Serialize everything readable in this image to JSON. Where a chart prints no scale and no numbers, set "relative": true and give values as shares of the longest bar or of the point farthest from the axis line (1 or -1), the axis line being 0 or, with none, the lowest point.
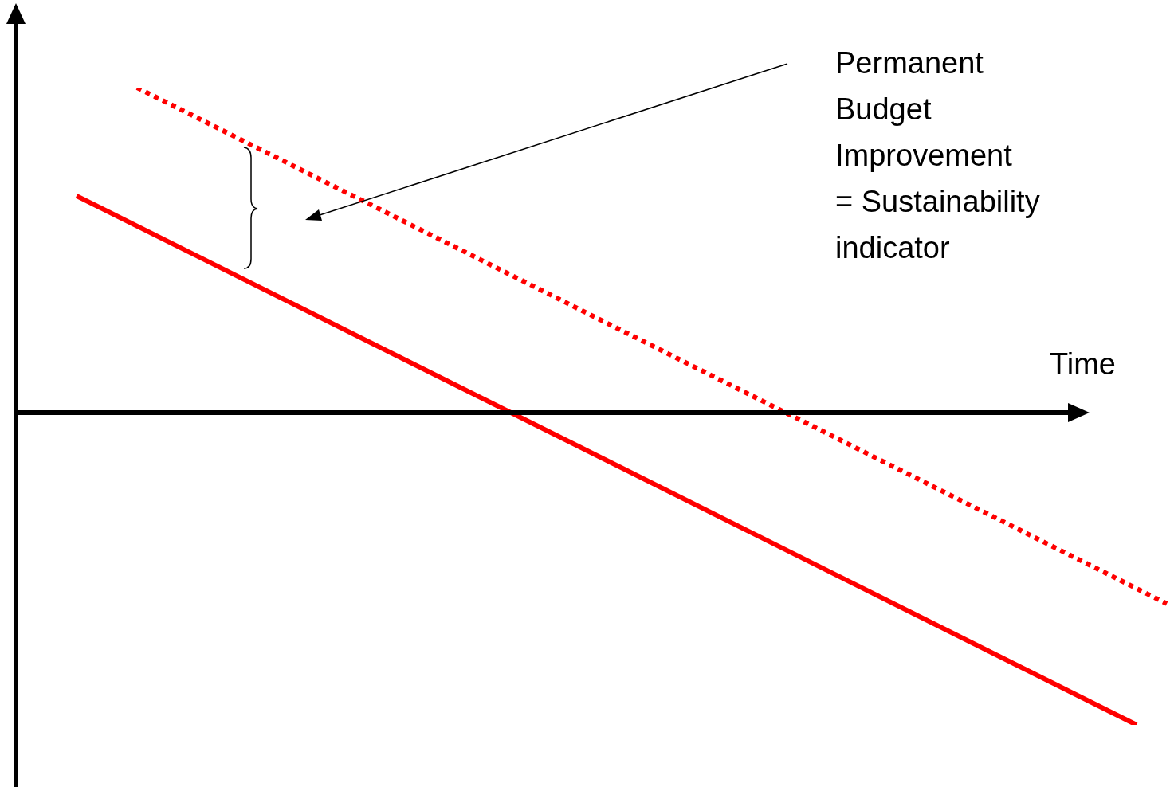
{
  "chart_data": {
    "type": "line",
    "relative": true,
    "xlabel": "Time",
    "annotations": [
      "Permanent Budget Improvement = Sustainability indicator"
    ],
    "legend": false,
    "marker": "none",
    "categories": [
      null,
      null,
      null,
      null,
      null,
      null,
      null,
      null,
      null,
      null,
      null,
      null,
      null,
      null,
      null,
      null,
      null,
      null,
      null,
      null,
      null,
      null,
      null,
      null,
      null,
      null,
      null,
      null,
      null,
      null,
      null,
      null,
      null,
      null,
      null,
      null,
      null,
      null,
      null
    ],
    "series": [
      {
        "color": "#ff0000",
        "line_style": "solid",
        "values": [
          null,
          null,
          0.667,
          null,
          null,
          null,
          null,
          null,
          null,
          null,
          null,
          null,
          null,
          null,
          null,
          null,
          null,
          null,
          null,
          null,
          null,
          null,
          null,
          null,
          null,
          null,
          null,
          null,
          null,
          null,
          null,
          null,
          null,
          null,
          null,
          null,
          null,
          -0.961,
          null
        ]
      },
      {
        "color": "#ff0000",
        "line_style": "dotted",
        "values": [
          null,
          null,
          null,
          null,
          1,
          null,
          null,
          null,
          null,
          null,
          null,
          null,
          null,
          null,
          null,
          null,
          null,
          null,
          null,
          null,
          null,
          null,
          null,
          null,
          null,
          null,
          null,
          null,
          null,
          null,
          null,
          null,
          null,
          null,
          null,
          null,
          null,
          null,
          -0.588
        ]
      }
    ]
  }
}
